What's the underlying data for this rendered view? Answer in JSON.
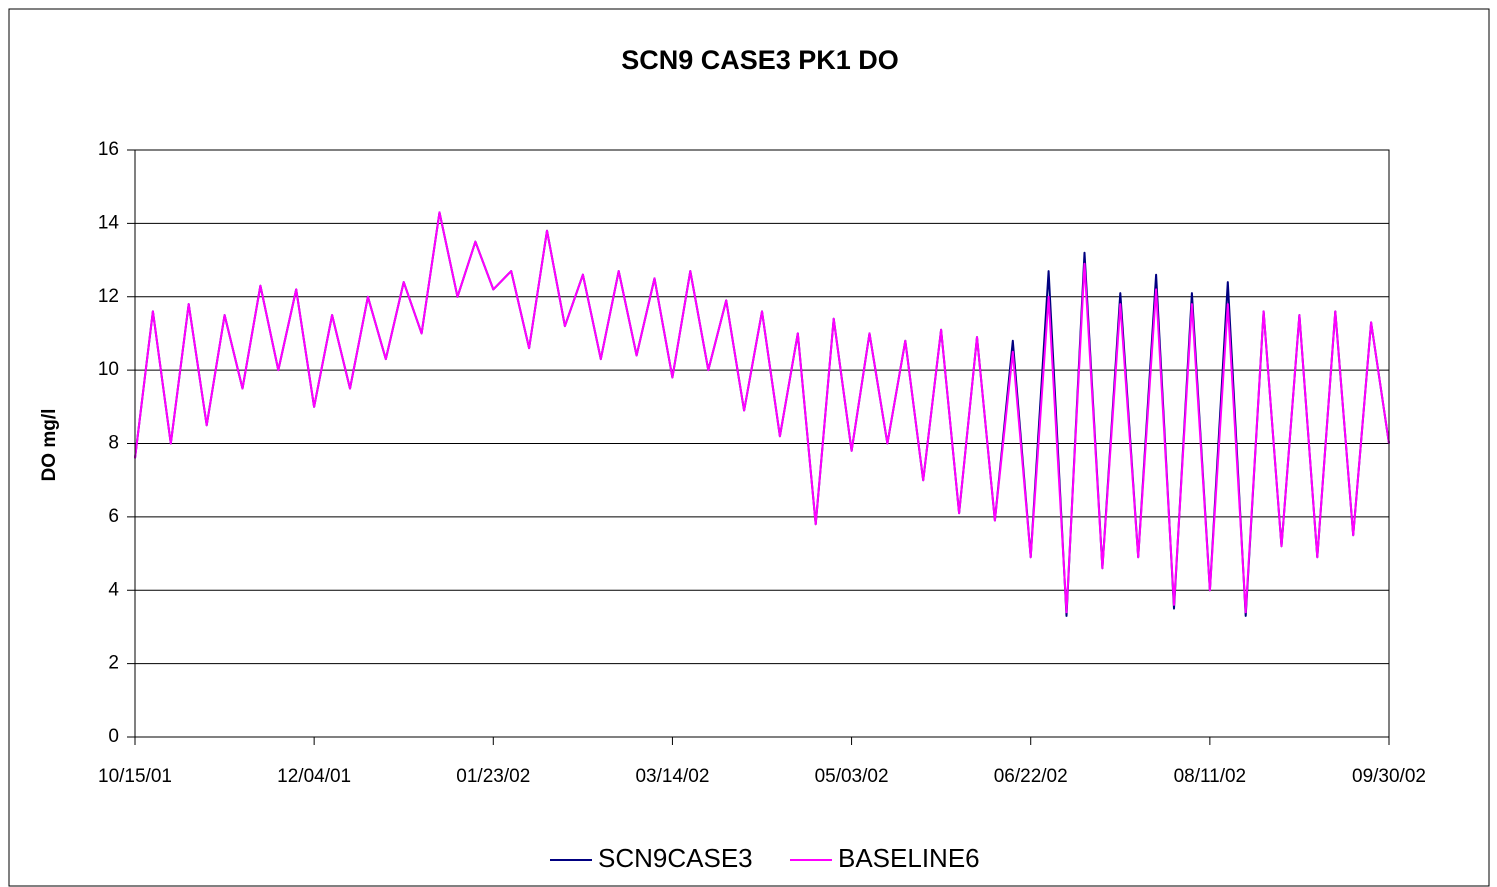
{
  "chart_data": {
    "type": "line",
    "title": "SCN9 CASE3 PK1 DO",
    "ylabel": "DO mg/l",
    "x": [
      "10/15/01",
      "10/20/01",
      "10/25/01",
      "10/30/01",
      "11/04/01",
      "11/09/01",
      "11/14/01",
      "11/19/01",
      "11/24/01",
      "11/29/01",
      "12/04/01",
      "12/09/01",
      "12/14/01",
      "12/19/01",
      "12/24/01",
      "12/29/01",
      "01/03/02",
      "01/08/02",
      "01/13/02",
      "01/18/02",
      "01/23/02",
      "01/28/02",
      "02/02/02",
      "02/07/02",
      "02/12/02",
      "02/17/02",
      "02/22/02",
      "02/27/02",
      "03/04/02",
      "03/09/02",
      "03/14/02",
      "03/19/02",
      "03/24/02",
      "03/29/02",
      "04/03/02",
      "04/08/02",
      "04/13/02",
      "04/18/02",
      "04/23/02",
      "04/28/02",
      "05/03/02",
      "05/08/02",
      "05/13/02",
      "05/18/02",
      "05/23/02",
      "05/28/02",
      "06/02/02",
      "06/07/02",
      "06/12/02",
      "06/17/02",
      "06/22/02",
      "06/27/02",
      "07/02/02",
      "07/07/02",
      "07/12/02",
      "07/17/02",
      "07/22/02",
      "07/27/02",
      "08/01/02",
      "08/06/02",
      "08/11/02",
      "08/16/02",
      "08/21/02",
      "08/26/02",
      "08/31/02",
      "09/05/02",
      "09/10/02",
      "09/15/02",
      "09/20/02",
      "09/25/02",
      "09/30/02"
    ],
    "series": [
      {
        "name": "SCN9CASE3",
        "color": "#000080",
        "values": [
          7.6,
          11.6,
          8.0,
          11.8,
          8.5,
          11.5,
          9.5,
          12.3,
          10.0,
          12.2,
          9.0,
          11.5,
          9.5,
          12.0,
          10.3,
          12.4,
          11.0,
          14.3,
          12.0,
          13.5,
          12.2,
          12.7,
          10.6,
          13.8,
          11.2,
          12.6,
          10.3,
          12.7,
          10.4,
          12.5,
          9.8,
          12.7,
          10.0,
          11.9,
          8.9,
          11.6,
          8.2,
          11.0,
          5.8,
          11.4,
          7.8,
          11.0,
          8.0,
          10.8,
          7.0,
          11.1,
          6.1,
          10.9,
          5.9,
          10.8,
          4.9,
          12.7,
          3.3,
          13.2,
          4.6,
          12.1,
          4.9,
          12.6,
          3.5,
          12.1,
          4.0,
          12.4,
          3.3,
          11.6,
          5.2,
          11.5,
          4.9,
          11.6,
          5.5,
          11.3,
          8.0
        ]
      },
      {
        "name": "BASELINE6",
        "color": "#ff00ff",
        "values": [
          7.6,
          11.6,
          8.0,
          11.8,
          8.5,
          11.5,
          9.5,
          12.3,
          10.0,
          12.2,
          9.0,
          11.5,
          9.5,
          12.0,
          10.3,
          12.4,
          11.0,
          14.3,
          12.0,
          13.5,
          12.2,
          12.7,
          10.6,
          13.8,
          11.2,
          12.6,
          10.3,
          12.7,
          10.4,
          12.5,
          9.8,
          12.7,
          10.0,
          11.9,
          8.9,
          11.6,
          8.2,
          11.0,
          5.8,
          11.4,
          7.8,
          11.0,
          8.0,
          10.8,
          7.0,
          11.1,
          6.1,
          10.9,
          5.9,
          10.5,
          4.9,
          12.0,
          3.4,
          12.9,
          4.6,
          11.8,
          4.9,
          12.2,
          3.6,
          11.8,
          4.0,
          11.8,
          3.4,
          11.6,
          5.2,
          11.5,
          4.9,
          11.6,
          5.5,
          11.3,
          8.0
        ]
      }
    ],
    "xlim": [
      "10/15/01",
      "09/30/02"
    ],
    "xticks": [
      "10/15/01",
      "12/04/01",
      "01/23/02",
      "03/14/02",
      "05/03/02",
      "06/22/02",
      "08/11/02",
      "09/30/02"
    ],
    "ylim": [
      0,
      16
    ],
    "yticks": [
      0,
      2,
      4,
      6,
      8,
      10,
      12,
      14,
      16
    ],
    "grid": true,
    "legend": "bottom"
  }
}
